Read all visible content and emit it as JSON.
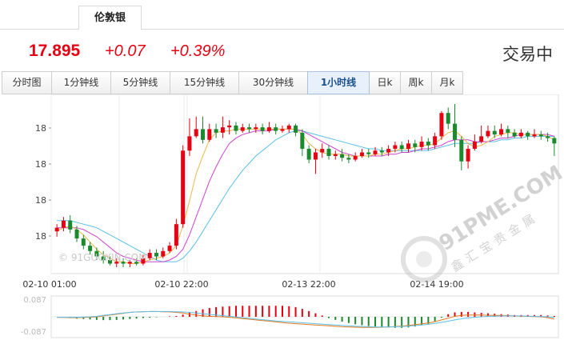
{
  "top_tab": {
    "label": "伦敦银"
  },
  "quote": {
    "price": "17.895",
    "change": "+0.07",
    "change_pct": "+0.39%",
    "status": "交易中"
  },
  "period_tabs": [
    {
      "label": "分时图",
      "active": false
    },
    {
      "label": "1分钟线",
      "active": false
    },
    {
      "label": "5分钟线",
      "active": false
    },
    {
      "label": "15分钟线",
      "active": false
    },
    {
      "label": "30分钟线",
      "active": false
    },
    {
      "label": "1小时线",
      "active": true
    },
    {
      "label": "日k",
      "active": false
    },
    {
      "label": "周k",
      "active": false
    },
    {
      "label": "月k",
      "active": false
    }
  ],
  "watermarks": {
    "left": "© 91GUOXIN.COM",
    "right_url": "91PME.COM",
    "right_name": "鑫汇宝贵金属"
  },
  "colors": {
    "up": "#e60012",
    "down": "#1b8a2e",
    "ma_short": "#e8b84a",
    "ma_mid": "#cc44cc",
    "ma_long": "#5bc0e8",
    "macd_line": "#e07a20",
    "signal_line": "#5bc0e8"
  },
  "chart_data": [
    {
      "type": "candlestick",
      "y_tick_labels": [
        "18",
        "18",
        "18",
        "18"
      ],
      "x_tick_labels": [
        "02-10 01:00",
        "02-10 22:00",
        "02-13 22:00",
        "02-14 19:00"
      ],
      "ylim": [
        17.58,
        18.49
      ],
      "candles": [
        [
          17.78,
          17.8,
          17.75,
          17.82
        ],
        [
          17.8,
          17.84,
          17.78,
          17.86
        ],
        [
          17.84,
          17.79,
          17.77,
          17.87
        ],
        [
          17.79,
          17.74,
          17.72,
          17.81
        ],
        [
          17.74,
          17.7,
          17.68,
          17.76
        ],
        [
          17.7,
          17.67,
          17.65,
          17.72
        ],
        [
          17.67,
          17.64,
          17.62,
          17.69
        ],
        [
          17.64,
          17.62,
          17.6,
          17.67
        ],
        [
          17.62,
          17.6,
          17.59,
          17.64
        ],
        [
          17.6,
          17.61,
          17.58,
          17.63
        ],
        [
          17.61,
          17.6,
          17.58,
          17.63
        ],
        [
          17.6,
          17.61,
          17.58,
          17.62
        ],
        [
          17.61,
          17.6,
          17.59,
          17.63
        ],
        [
          17.6,
          17.63,
          17.59,
          17.65
        ],
        [
          17.63,
          17.66,
          17.62,
          17.68
        ],
        [
          17.66,
          17.64,
          17.62,
          17.68
        ],
        [
          17.64,
          17.67,
          17.63,
          17.69
        ],
        [
          17.67,
          17.7,
          17.66,
          17.72
        ],
        [
          17.7,
          17.82,
          17.68,
          17.85
        ],
        [
          17.82,
          18.23,
          17.8,
          18.26
        ],
        [
          18.23,
          18.31,
          18.2,
          18.41
        ],
        [
          18.31,
          18.35,
          18.3,
          18.42
        ],
        [
          18.35,
          18.29,
          18.27,
          18.42
        ],
        [
          18.29,
          18.35,
          18.28,
          18.38
        ],
        [
          18.35,
          18.33,
          18.3,
          18.38
        ],
        [
          18.33,
          18.36,
          18.3,
          18.42
        ],
        [
          18.36,
          18.37,
          18.32,
          18.4
        ],
        [
          18.37,
          18.34,
          18.32,
          18.39
        ],
        [
          18.34,
          18.36,
          18.33,
          18.38
        ],
        [
          18.36,
          18.35,
          18.33,
          18.38
        ],
        [
          18.35,
          18.36,
          18.33,
          18.38
        ],
        [
          18.36,
          18.34,
          18.32,
          18.38
        ],
        [
          18.34,
          18.36,
          18.33,
          18.39
        ],
        [
          18.36,
          18.34,
          18.32,
          18.38
        ],
        [
          18.34,
          18.35,
          18.33,
          18.37
        ],
        [
          18.35,
          18.37,
          18.33,
          18.38
        ],
        [
          18.37,
          18.33,
          18.31,
          18.38
        ],
        [
          18.33,
          18.24,
          18.2,
          18.35
        ],
        [
          18.24,
          18.18,
          18.16,
          18.26
        ],
        [
          18.18,
          18.22,
          18.1,
          18.24
        ],
        [
          18.22,
          18.24,
          18.19,
          18.27
        ],
        [
          18.24,
          18.2,
          18.18,
          18.26
        ],
        [
          18.2,
          18.21,
          18.18,
          18.23
        ],
        [
          18.21,
          18.19,
          18.17,
          18.24
        ],
        [
          18.19,
          18.18,
          18.16,
          18.21
        ],
        [
          18.18,
          18.2,
          18.17,
          18.22
        ],
        [
          18.2,
          18.22,
          18.19,
          18.24
        ],
        [
          18.22,
          18.21,
          18.19,
          18.24
        ],
        [
          18.21,
          18.23,
          18.2,
          18.25
        ],
        [
          18.23,
          18.22,
          18.2,
          18.25
        ],
        [
          18.22,
          18.24,
          18.2,
          18.26
        ],
        [
          18.24,
          18.26,
          18.22,
          18.28
        ],
        [
          18.26,
          18.24,
          18.22,
          18.28
        ],
        [
          18.24,
          18.27,
          18.22,
          18.29
        ],
        [
          18.27,
          18.25,
          18.22,
          18.29
        ],
        [
          18.25,
          18.28,
          18.23,
          18.31
        ],
        [
          18.28,
          18.26,
          18.23,
          18.3
        ],
        [
          18.26,
          18.31,
          18.24,
          18.33
        ],
        [
          18.31,
          18.44,
          18.29,
          18.45
        ],
        [
          18.44,
          18.38,
          18.35,
          18.47
        ],
        [
          18.38,
          18.29,
          18.25,
          18.49
        ],
        [
          18.29,
          18.17,
          18.12,
          18.31
        ],
        [
          18.17,
          18.24,
          18.13,
          18.26
        ],
        [
          18.24,
          18.28,
          18.23,
          18.32
        ],
        [
          18.28,
          18.31,
          18.27,
          18.37
        ],
        [
          18.31,
          18.34,
          18.3,
          18.37
        ],
        [
          18.34,
          18.32,
          18.3,
          18.37
        ],
        [
          18.32,
          18.35,
          18.31,
          18.38
        ],
        [
          18.35,
          18.33,
          18.3,
          18.37
        ],
        [
          18.33,
          18.31,
          18.3,
          18.35
        ],
        [
          18.31,
          18.33,
          18.3,
          18.35
        ],
        [
          18.33,
          18.31,
          18.29,
          18.34
        ],
        [
          18.31,
          18.32,
          18.3,
          18.35
        ],
        [
          18.32,
          18.31,
          18.29,
          18.34
        ],
        [
          18.31,
          18.3,
          18.28,
          18.33
        ],
        [
          18.3,
          18.27,
          18.2,
          18.31
        ]
      ],
      "ma_short": [
        17.78,
        17.8,
        17.81,
        17.79,
        17.76,
        17.72,
        17.68,
        17.65,
        17.63,
        17.61,
        17.61,
        17.6,
        17.6,
        17.61,
        17.62,
        17.63,
        17.64,
        17.66,
        17.7,
        17.81,
        17.95,
        18.1,
        18.2,
        18.29,
        18.33,
        18.34,
        18.34,
        18.35,
        18.35,
        18.35,
        18.35,
        18.35,
        18.35,
        18.35,
        18.35,
        18.35,
        18.35,
        18.32,
        18.27,
        18.24,
        18.22,
        18.21,
        18.21,
        18.21,
        18.2,
        18.2,
        18.2,
        18.2,
        18.21,
        18.21,
        18.22,
        18.23,
        18.24,
        18.24,
        18.25,
        18.26,
        18.26,
        18.27,
        18.3,
        18.33,
        18.34,
        18.31,
        18.27,
        18.25,
        18.26,
        18.28,
        18.31,
        18.32,
        18.33,
        18.33,
        18.32,
        18.32,
        18.32,
        18.32,
        18.31,
        18.29
      ],
      "ma_mid": [
        17.8,
        17.8,
        17.8,
        17.8,
        17.79,
        17.77,
        17.75,
        17.72,
        17.69,
        17.66,
        17.64,
        17.63,
        17.62,
        17.61,
        17.61,
        17.61,
        17.61,
        17.62,
        17.64,
        17.68,
        17.76,
        17.86,
        17.96,
        18.06,
        18.14,
        18.21,
        18.27,
        18.3,
        18.32,
        18.33,
        18.34,
        18.34,
        18.34,
        18.35,
        18.35,
        18.35,
        18.35,
        18.34,
        18.32,
        18.3,
        18.28,
        18.26,
        18.24,
        18.22,
        18.21,
        18.2,
        18.2,
        18.2,
        18.2,
        18.2,
        18.21,
        18.21,
        18.22,
        18.22,
        18.23,
        18.24,
        18.24,
        18.25,
        18.26,
        18.28,
        18.29,
        18.29,
        18.29,
        18.28,
        18.28,
        18.28,
        18.29,
        18.3,
        18.3,
        18.31,
        18.32,
        18.32,
        18.32,
        18.32,
        18.32,
        18.31
      ],
      "ma_long": [
        17.84,
        17.84,
        17.84,
        17.83,
        17.82,
        17.81,
        17.8,
        17.78,
        17.76,
        17.74,
        17.72,
        17.7,
        17.68,
        17.66,
        17.64,
        17.62,
        17.61,
        17.61,
        17.61,
        17.63,
        17.67,
        17.72,
        17.78,
        17.84,
        17.9,
        17.96,
        18.02,
        18.07,
        18.12,
        18.16,
        18.2,
        18.23,
        18.26,
        18.29,
        18.31,
        18.33,
        18.34,
        18.34,
        18.33,
        18.32,
        18.31,
        18.3,
        18.29,
        18.28,
        18.27,
        18.26,
        18.25,
        18.24,
        18.24,
        18.23,
        18.23,
        18.23,
        18.23,
        18.23,
        18.23,
        18.23,
        18.23,
        18.24,
        18.25,
        18.26,
        18.27,
        18.27,
        18.27,
        18.27,
        18.28,
        18.28,
        18.28,
        18.29,
        18.29,
        18.3,
        18.3,
        18.31,
        18.31,
        18.31,
        18.31,
        18.31
      ]
    },
    {
      "type": "macd",
      "y_tick_labels": [
        "0.087",
        "-0.087"
      ],
      "ylim": [
        -0.087,
        0.087
      ],
      "histogram": [
        0,
        0,
        -0.004,
        -0.008,
        -0.01,
        -0.012,
        -0.014,
        -0.015,
        -0.015,
        -0.014,
        -0.012,
        -0.01,
        -0.008,
        -0.006,
        -0.004,
        -0.002,
        0,
        0.002,
        0.004,
        0.01,
        0.018,
        0.026,
        0.034,
        0.04,
        0.044,
        0.046,
        0.048,
        0.05,
        0.05,
        0.05,
        0.05,
        0.05,
        0.05,
        0.05,
        0.05,
        0.048,
        0.044,
        0.036,
        0.026,
        0.016,
        0.006,
        -0.006,
        -0.014,
        -0.022,
        -0.028,
        -0.034,
        -0.038,
        -0.042,
        -0.044,
        -0.046,
        -0.048,
        -0.05,
        -0.05,
        -0.048,
        -0.044,
        -0.038,
        -0.032,
        -0.02,
        -0.004,
        0.012,
        0.02,
        0.022,
        0.022,
        0.02,
        0.018,
        0.016,
        0.014,
        0.012,
        0.01,
        0.008,
        0.008,
        0.008,
        0.008,
        0.008,
        0.006,
        0.004
      ],
      "macd_line": [
        -0.003,
        -0.003,
        -0.004,
        -0.004,
        -0.003,
        -0.002,
        0,
        0.004,
        0.008,
        0.012,
        0.016,
        0.02,
        0.022,
        0.023,
        0.024,
        0.024,
        0.023,
        0.022,
        0.02,
        0.017,
        0.012,
        0.008,
        0.004,
        0.002,
        0.001,
        0,
        -0.002,
        -0.005,
        -0.008,
        -0.011,
        -0.014,
        -0.017,
        -0.02,
        -0.023,
        -0.026,
        -0.029,
        -0.031,
        -0.033,
        -0.035,
        -0.037,
        -0.039,
        -0.041,
        -0.043,
        -0.045,
        -0.046,
        -0.047,
        -0.048,
        -0.048,
        -0.048,
        -0.047,
        -0.046,
        -0.044,
        -0.042,
        -0.039,
        -0.036,
        -0.032,
        -0.028,
        -0.022,
        -0.014,
        -0.006,
        0.002,
        0.006,
        0.008,
        0.008,
        0.008,
        0.007,
        0.006,
        0.006,
        0.005,
        0.004,
        0.003,
        0.002,
        0.001,
        0,
        -0.004,
        -0.01
      ],
      "signal_line": [
        -0.002,
        -0.002,
        -0.002,
        -0.002,
        -0.001,
        0,
        0.002,
        0.006,
        0.01,
        0.014,
        0.017,
        0.02,
        0.022,
        0.023,
        0.024,
        0.024,
        0.024,
        0.024,
        0.023,
        0.022,
        0.02,
        0.017,
        0.014,
        0.011,
        0.008,
        0.005,
        0.002,
        -0.001,
        -0.004,
        -0.007,
        -0.01,
        -0.013,
        -0.016,
        -0.019,
        -0.021,
        -0.023,
        -0.025,
        -0.027,
        -0.029,
        -0.031,
        -0.033,
        -0.035,
        -0.037,
        -0.039,
        -0.041,
        -0.043,
        -0.044,
        -0.045,
        -0.046,
        -0.046,
        -0.046,
        -0.045,
        -0.044,
        -0.042,
        -0.04,
        -0.037,
        -0.034,
        -0.03,
        -0.025,
        -0.02,
        -0.014,
        -0.009,
        -0.005,
        -0.002,
        0,
        0.002,
        0.003,
        0.004,
        0.004,
        0.004,
        0.004,
        0.003,
        0.002,
        0.001,
        0,
        -0.003
      ]
    }
  ]
}
